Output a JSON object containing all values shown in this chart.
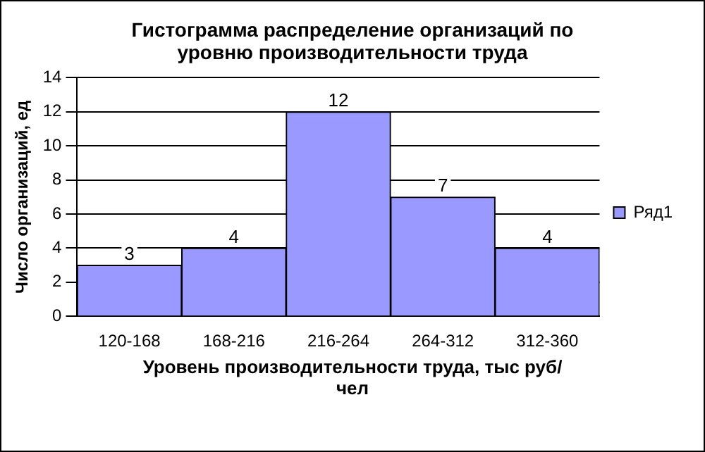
{
  "chart_data": {
    "type": "bar",
    "title": "Гистограмма распределение организаций  по уровню производительности труда",
    "xlabel": "Уровень производительности труда, тыс руб/чел",
    "ylabel": "Число организаций, ед",
    "categories": [
      "120-168",
      "168-216",
      "216-264",
      "264-312",
      "312-360"
    ],
    "series": [
      {
        "name": "Ряд1",
        "color": "#9999ff",
        "values": [
          3,
          4,
          12,
          7,
          4
        ]
      }
    ],
    "ylim": [
      0,
      14
    ],
    "yticks": [
      0,
      2,
      4,
      6,
      8,
      10,
      12,
      14
    ],
    "grid": "y",
    "legend": "right",
    "data_labels": true
  }
}
